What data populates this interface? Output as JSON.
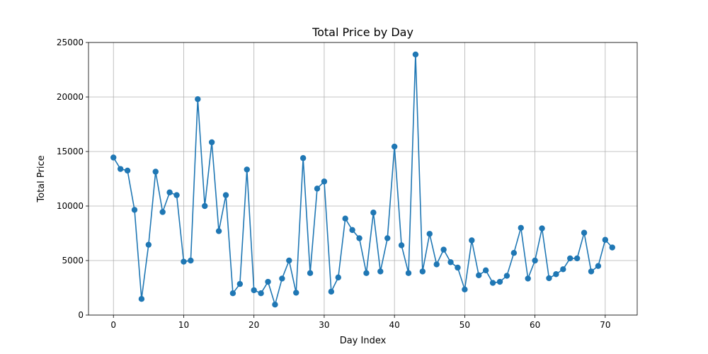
{
  "chart_data": {
    "type": "line",
    "title": "Total Price by Day",
    "xlabel": "Day Index",
    "ylabel": "Total Price",
    "xlim": [
      -3.55,
      74.55
    ],
    "ylim": [
      0,
      25000
    ],
    "xticks": [
      0,
      10,
      20,
      30,
      40,
      50,
      60,
      70
    ],
    "yticks": [
      0,
      5000,
      10000,
      15000,
      20000,
      25000
    ],
    "grid": true,
    "markers": true,
    "series": [
      {
        "color": "#1f77b4",
        "x": [
          0,
          1,
          2,
          3,
          4,
          5,
          6,
          7,
          8,
          9,
          10,
          11,
          12,
          13,
          14,
          15,
          16,
          17,
          18,
          19,
          20,
          21,
          22,
          23,
          24,
          25,
          26,
          27,
          28,
          29,
          30,
          31,
          32,
          33,
          34,
          35,
          36,
          37,
          38,
          39,
          40,
          41,
          42,
          43,
          44,
          45,
          46,
          47,
          48,
          49,
          50,
          51,
          52,
          53,
          54,
          55,
          56,
          57,
          58,
          59,
          60,
          61,
          62,
          63,
          64,
          65,
          66,
          67,
          68,
          69,
          70,
          71
        ],
        "y": [
          14450,
          13400,
          13250,
          9650,
          1480,
          6450,
          13150,
          9450,
          11250,
          11000,
          4900,
          5000,
          19800,
          10000,
          15850,
          7700,
          11000,
          2000,
          2850,
          13350,
          2280,
          2000,
          3050,
          960,
          3350,
          5000,
          2050,
          14400,
          3850,
          11600,
          12250,
          2150,
          3450,
          8850,
          7800,
          7050,
          3850,
          9400,
          4000,
          7050,
          15450,
          6400,
          3850,
          23900,
          4000,
          7450,
          4650,
          6000,
          4850,
          4350,
          2350,
          6850,
          3650,
          4100,
          2950,
          3050,
          3600,
          5700,
          8000,
          3350,
          5000,
          7950,
          3380,
          3750,
          4200,
          5200,
          5200,
          7550,
          4000,
          4500,
          6900,
          6200
        ]
      }
    ]
  }
}
